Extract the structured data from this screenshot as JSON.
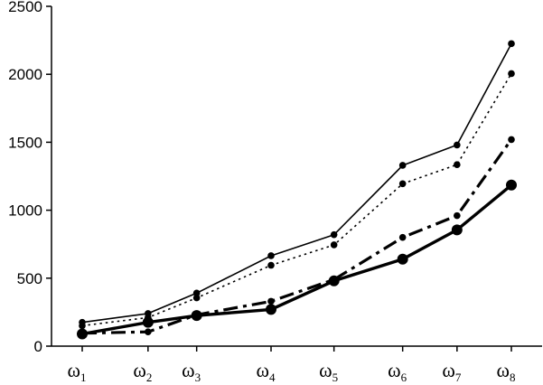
{
  "chart_data": {
    "type": "line",
    "title": "",
    "xlabel": "",
    "ylabel": "",
    "ylim": [
      0,
      2500
    ],
    "yticks": [
      0,
      500,
      1000,
      1500,
      2000,
      2500
    ],
    "grid": false,
    "categories": [
      {
        "base": "ω",
        "sub": "1"
      },
      {
        "base": "ω",
        "sub": "2"
      },
      {
        "base": "ω",
        "sub": "3"
      },
      {
        "base": "ω",
        "sub": "4"
      },
      {
        "base": "ω",
        "sub": "5"
      },
      {
        "base": "ω",
        "sub": "6"
      },
      {
        "base": "ω",
        "sub": "7"
      },
      {
        "base": "ω",
        "sub": "8"
      }
    ],
    "x_positions": [
      1.0,
      2.15,
      3.0,
      4.3,
      5.4,
      6.6,
      7.55,
      8.5
    ],
    "series": [
      {
        "style": "solid-thin",
        "marker": "dot-small",
        "values": [
          175,
          240,
          390,
          665,
          820,
          1330,
          1480,
          2225
        ]
      },
      {
        "style": "dotted",
        "marker": "dot-small",
        "values": [
          150,
          210,
          355,
          595,
          745,
          1195,
          1335,
          2005
        ]
      },
      {
        "style": "dashdot",
        "marker": "dot-small",
        "values": [
          95,
          105,
          230,
          330,
          490,
          800,
          960,
          1520
        ]
      },
      {
        "style": "solid-thick",
        "marker": "dot-large",
        "values": [
          90,
          175,
          225,
          270,
          480,
          640,
          855,
          1185
        ]
      }
    ]
  }
}
